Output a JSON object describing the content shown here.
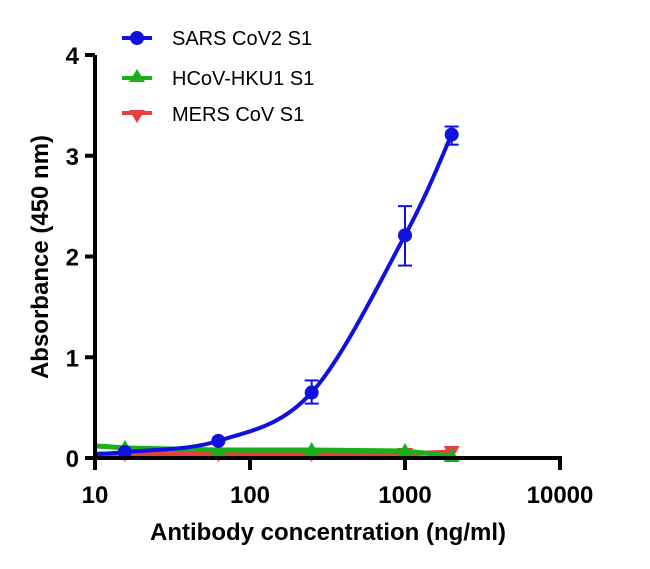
{
  "chart_data": {
    "type": "line",
    "title": "",
    "xlabel": "Antibody concentration (ng/ml)",
    "ylabel": "Absorbance (450 nm)",
    "xscale": "log",
    "xlim": [
      10,
      10000
    ],
    "ylim": [
      0,
      4
    ],
    "xticks": [
      10,
      100,
      1000,
      10000
    ],
    "xtick_labels": [
      "10",
      "100",
      "1000",
      "10000"
    ],
    "yticks": [
      0,
      1,
      2,
      3,
      4
    ],
    "ytick_labels": [
      "0",
      "1",
      "2",
      "3",
      "4"
    ],
    "grid": false,
    "legend_position": "top-left",
    "series": [
      {
        "name": "SARS CoV2 S1",
        "color": "#1010e0",
        "marker": "circle",
        "x": [
          15.6,
          62.5,
          250,
          1000,
          2000
        ],
        "y": [
          0.06,
          0.17,
          0.65,
          2.21,
          3.21
        ],
        "yerr_low": [
          0.06,
          0.17,
          0.54,
          1.91,
          3.11
        ],
        "yerr_high": [
          0.06,
          0.17,
          0.77,
          2.5,
          3.29
        ],
        "fit": "sigmoidal"
      },
      {
        "name": "HCoV-HKU1 S1",
        "color": "#1ab01a",
        "marker": "triangle-up",
        "x": [
          15.6,
          62.5,
          250,
          1000,
          2000
        ],
        "y": [
          0.1,
          0.08,
          0.08,
          0.07,
          0.02
        ],
        "line_start": 0.12
      },
      {
        "name": "MERS CoV S1",
        "color": "#e84040",
        "marker": "triangle-down",
        "x": [
          15.6,
          62.5,
          250,
          1000,
          2000
        ],
        "y": [
          0.04,
          0.04,
          0.04,
          0.04,
          0.06
        ],
        "line_start": 0.04
      }
    ]
  }
}
